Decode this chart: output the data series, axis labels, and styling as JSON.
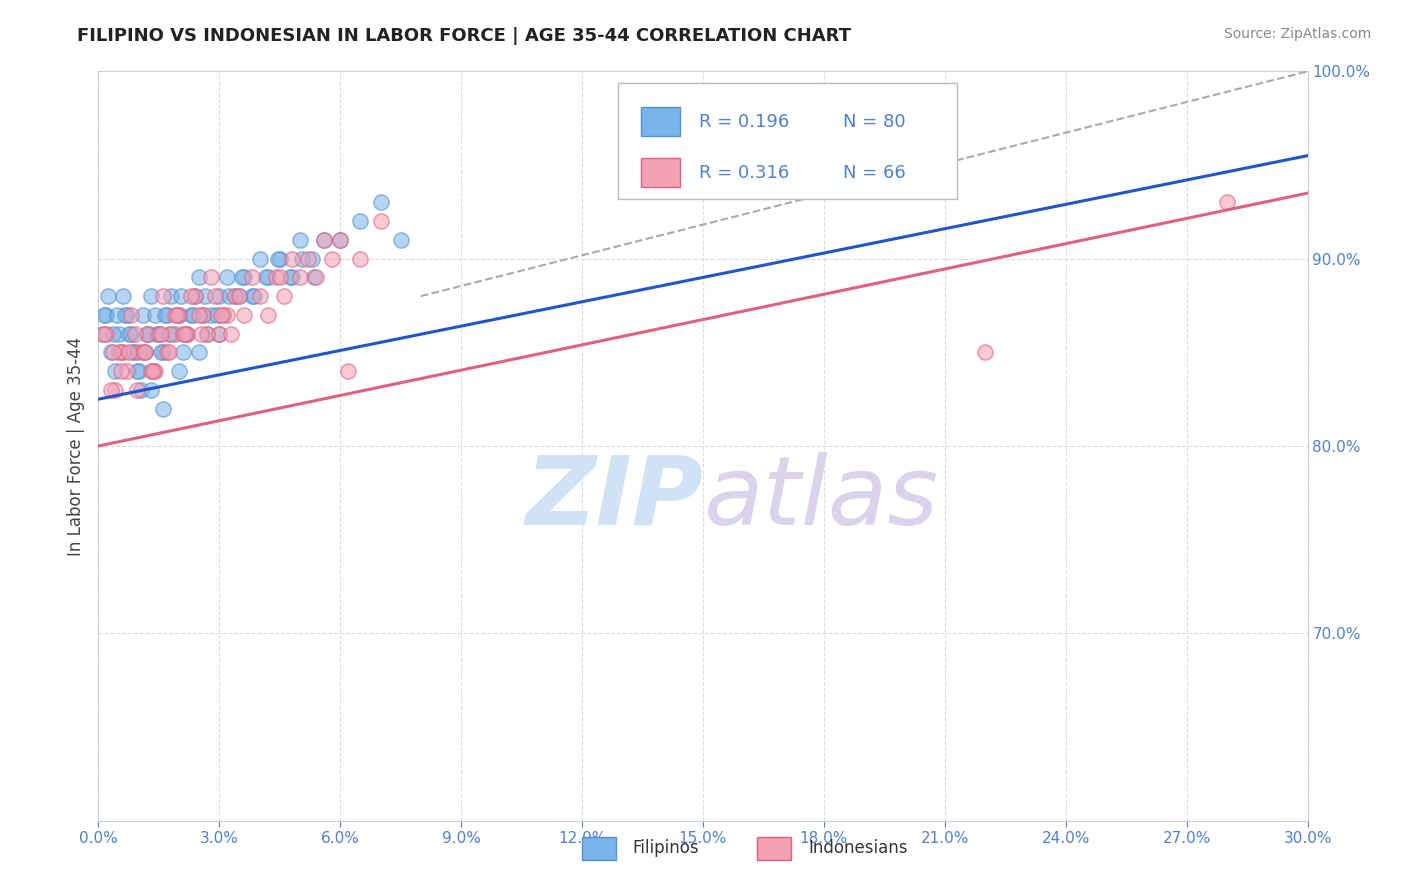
{
  "title": "FILIPINO VS INDONESIAN IN LABOR FORCE | AGE 35-44 CORRELATION CHART",
  "source": "Source: ZipAtlas.com",
  "ylabel": "In Labor Force | Age 35-44",
  "legend_filipino_r": "R = 0.196",
  "legend_filipino_n": "N = 80",
  "legend_indonesian_r": "R = 0.316",
  "legend_indonesian_n": "N = 66",
  "filipino_color": "#7ab3e8",
  "filipino_edge": "#5090d0",
  "indonesian_color": "#f4a0b5",
  "indonesian_edge": "#e06080",
  "trend_filipino_color": "#2255cc",
  "trend_indonesian_color": "#e06080",
  "trend_gray_color": "#aaaaaa",
  "xlim": [
    0.0,
    30.0
  ],
  "ylim": [
    60.0,
    100.0
  ],
  "xtick_step": 3.0,
  "ytick_vals": [
    70.0,
    80.0,
    90.0,
    100.0
  ],
  "tick_color": "#5080d0",
  "grid_color": "#dddddd",
  "title_color": "#222222",
  "source_color": "#888888",
  "ylabel_color": "#444444",
  "watermark_zip_color": "#c8dff5",
  "watermark_atlas_color": "#d5cce8",
  "filipino_x": [
    0.1,
    0.2,
    0.3,
    0.4,
    0.5,
    0.6,
    0.7,
    0.8,
    0.9,
    1.0,
    1.1,
    1.2,
    1.3,
    1.4,
    1.5,
    1.6,
    1.7,
    1.8,
    1.9,
    2.0,
    2.1,
    2.2,
    2.3,
    2.4,
    2.5,
    2.6,
    2.7,
    2.8,
    3.0,
    3.2,
    3.4,
    3.6,
    3.8,
    4.0,
    4.2,
    4.5,
    4.8,
    5.0,
    5.3,
    5.6,
    0.15,
    0.25,
    0.35,
    0.45,
    0.55,
    0.65,
    0.75,
    0.85,
    0.95,
    1.05,
    1.15,
    1.25,
    1.35,
    1.45,
    1.55,
    1.65,
    1.75,
    2.05,
    2.35,
    2.65,
    2.95,
    3.25,
    3.55,
    3.85,
    4.15,
    4.45,
    4.75,
    5.05,
    5.35,
    6.0,
    6.5,
    7.0,
    7.5,
    1.3,
    1.6,
    2.0,
    2.5,
    3.0,
    3.5,
    18.0
  ],
  "filipino_y": [
    86,
    87,
    85,
    84,
    86,
    88,
    87,
    86,
    85,
    84,
    87,
    86,
    88,
    87,
    86,
    85,
    87,
    88,
    86,
    87,
    85,
    86,
    87,
    88,
    89,
    87,
    86,
    87,
    88,
    89,
    88,
    89,
    88,
    90,
    89,
    90,
    89,
    91,
    90,
    91,
    87,
    88,
    86,
    87,
    85,
    87,
    86,
    85,
    84,
    83,
    85,
    86,
    84,
    86,
    85,
    87,
    86,
    88,
    87,
    88,
    87,
    88,
    89,
    88,
    89,
    90,
    89,
    90,
    89,
    91,
    92,
    93,
    91,
    83,
    82,
    84,
    85,
    86,
    88,
    96
  ],
  "indonesian_x": [
    0.2,
    0.4,
    0.6,
    0.8,
    1.0,
    1.2,
    1.4,
    1.6,
    1.8,
    2.0,
    2.2,
    2.4,
    2.6,
    2.8,
    3.0,
    3.2,
    3.4,
    3.6,
    3.8,
    4.0,
    4.2,
    4.4,
    4.6,
    4.8,
    5.0,
    5.2,
    5.4,
    5.6,
    5.8,
    6.0,
    6.5,
    7.0,
    0.3,
    0.5,
    0.7,
    0.9,
    1.1,
    1.3,
    1.5,
    1.7,
    1.9,
    2.1,
    2.3,
    2.5,
    2.7,
    2.9,
    3.1,
    3.3,
    3.5,
    4.5,
    0.15,
    0.35,
    0.55,
    0.75,
    0.95,
    1.15,
    1.35,
    1.55,
    1.75,
    1.95,
    2.15,
    2.55,
    3.05,
    6.2,
    22.0,
    28.0
  ],
  "indonesian_y": [
    86,
    83,
    85,
    87,
    85,
    86,
    84,
    88,
    86,
    87,
    86,
    88,
    87,
    89,
    86,
    87,
    88,
    87,
    89,
    88,
    87,
    89,
    88,
    90,
    89,
    90,
    89,
    91,
    90,
    91,
    90,
    92,
    83,
    85,
    84,
    86,
    85,
    84,
    86,
    85,
    87,
    86,
    88,
    87,
    86,
    88,
    87,
    86,
    88,
    89,
    86,
    85,
    84,
    85,
    83,
    85,
    84,
    86,
    85,
    87,
    86,
    86,
    87,
    84,
    85,
    93
  ],
  "trend_blue_x0": 0.0,
  "trend_blue_y0": 82.5,
  "trend_blue_x1": 30.0,
  "trend_blue_y1": 95.5,
  "trend_pink_x0": 0.0,
  "trend_pink_y0": 80.0,
  "trend_pink_x1": 30.0,
  "trend_pink_y1": 93.5,
  "trend_gray_x0": 8.0,
  "trend_gray_y0": 88.0,
  "trend_gray_x1": 30.0,
  "trend_gray_y1": 100.0
}
